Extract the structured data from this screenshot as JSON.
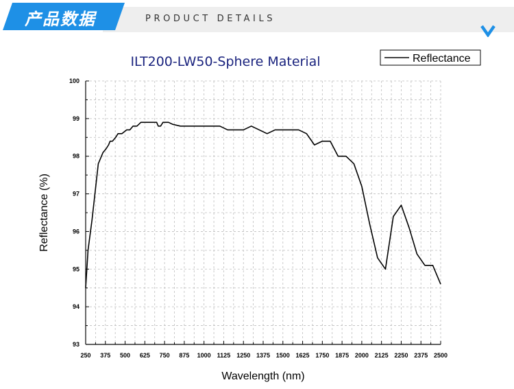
{
  "banner": {
    "title": "产品数据",
    "subtitle": "PRODUCT DETAILS",
    "accent_color": "#1e90e6",
    "chevron_icon": "chevron-down-icon"
  },
  "chart_data": {
    "type": "line",
    "title": "ILT200-LW50-Sphere Material",
    "xlabel": "Wavelength (nm)",
    "ylabel": "Reflectance (%)",
    "xlim": [
      250,
      2500
    ],
    "ylim": [
      93,
      100
    ],
    "x_ticks": [
      "250",
      "375",
      "500",
      "625",
      "750",
      "875",
      "1000",
      "1125",
      "1250",
      "1375",
      "1500",
      "1625",
      "1750",
      "1875",
      "2000",
      "2125",
      "2250",
      "2375",
      "2500"
    ],
    "y_ticks": [
      "93",
      "94",
      "95",
      "96",
      "97",
      "98",
      "99",
      "100"
    ],
    "x_tick_values": [
      250,
      375,
      500,
      625,
      750,
      875,
      1000,
      1125,
      1250,
      1375,
      1500,
      1625,
      1750,
      1875,
      2000,
      2125,
      2250,
      2375,
      2500
    ],
    "y_tick_values": [
      93,
      94,
      95,
      96,
      97,
      98,
      99,
      100
    ],
    "grid": true,
    "legend": {
      "placement": "top-right",
      "entries": [
        "Reflectance"
      ]
    },
    "series": [
      {
        "name": "Reflectance",
        "color": "#000000",
        "x": [
          250,
          265,
          290,
          330,
          360,
          380,
          395,
          405,
          420,
          440,
          455,
          480,
          510,
          530,
          550,
          575,
          600,
          625,
          650,
          700,
          710,
          725,
          740,
          760,
          775,
          800,
          850,
          900,
          950,
          1000,
          1050,
          1100,
          1150,
          1200,
          1250,
          1300,
          1350,
          1400,
          1450,
          1500,
          1550,
          1600,
          1650,
          1700,
          1750,
          1800,
          1850,
          1900,
          1950,
          2000,
          2050,
          2100,
          2150,
          2200,
          2250,
          2300,
          2350,
          2400,
          2450,
          2500
        ],
        "values": [
          94.5,
          95.5,
          96.3,
          97.8,
          98.1,
          98.2,
          98.3,
          98.4,
          98.4,
          98.5,
          98.6,
          98.6,
          98.7,
          98.7,
          98.8,
          98.8,
          98.9,
          98.9,
          98.9,
          98.9,
          98.8,
          98.8,
          98.9,
          98.9,
          98.9,
          98.85,
          98.8,
          98.8,
          98.8,
          98.8,
          98.8,
          98.8,
          98.7,
          98.7,
          98.7,
          98.8,
          98.7,
          98.6,
          98.7,
          98.7,
          98.7,
          98.7,
          98.6,
          98.3,
          98.4,
          98.4,
          98.0,
          98.0,
          97.8,
          97.2,
          96.2,
          95.3,
          95.0,
          96.4,
          96.7,
          96.1,
          95.4,
          95.1,
          95.1,
          94.6
        ]
      }
    ]
  }
}
